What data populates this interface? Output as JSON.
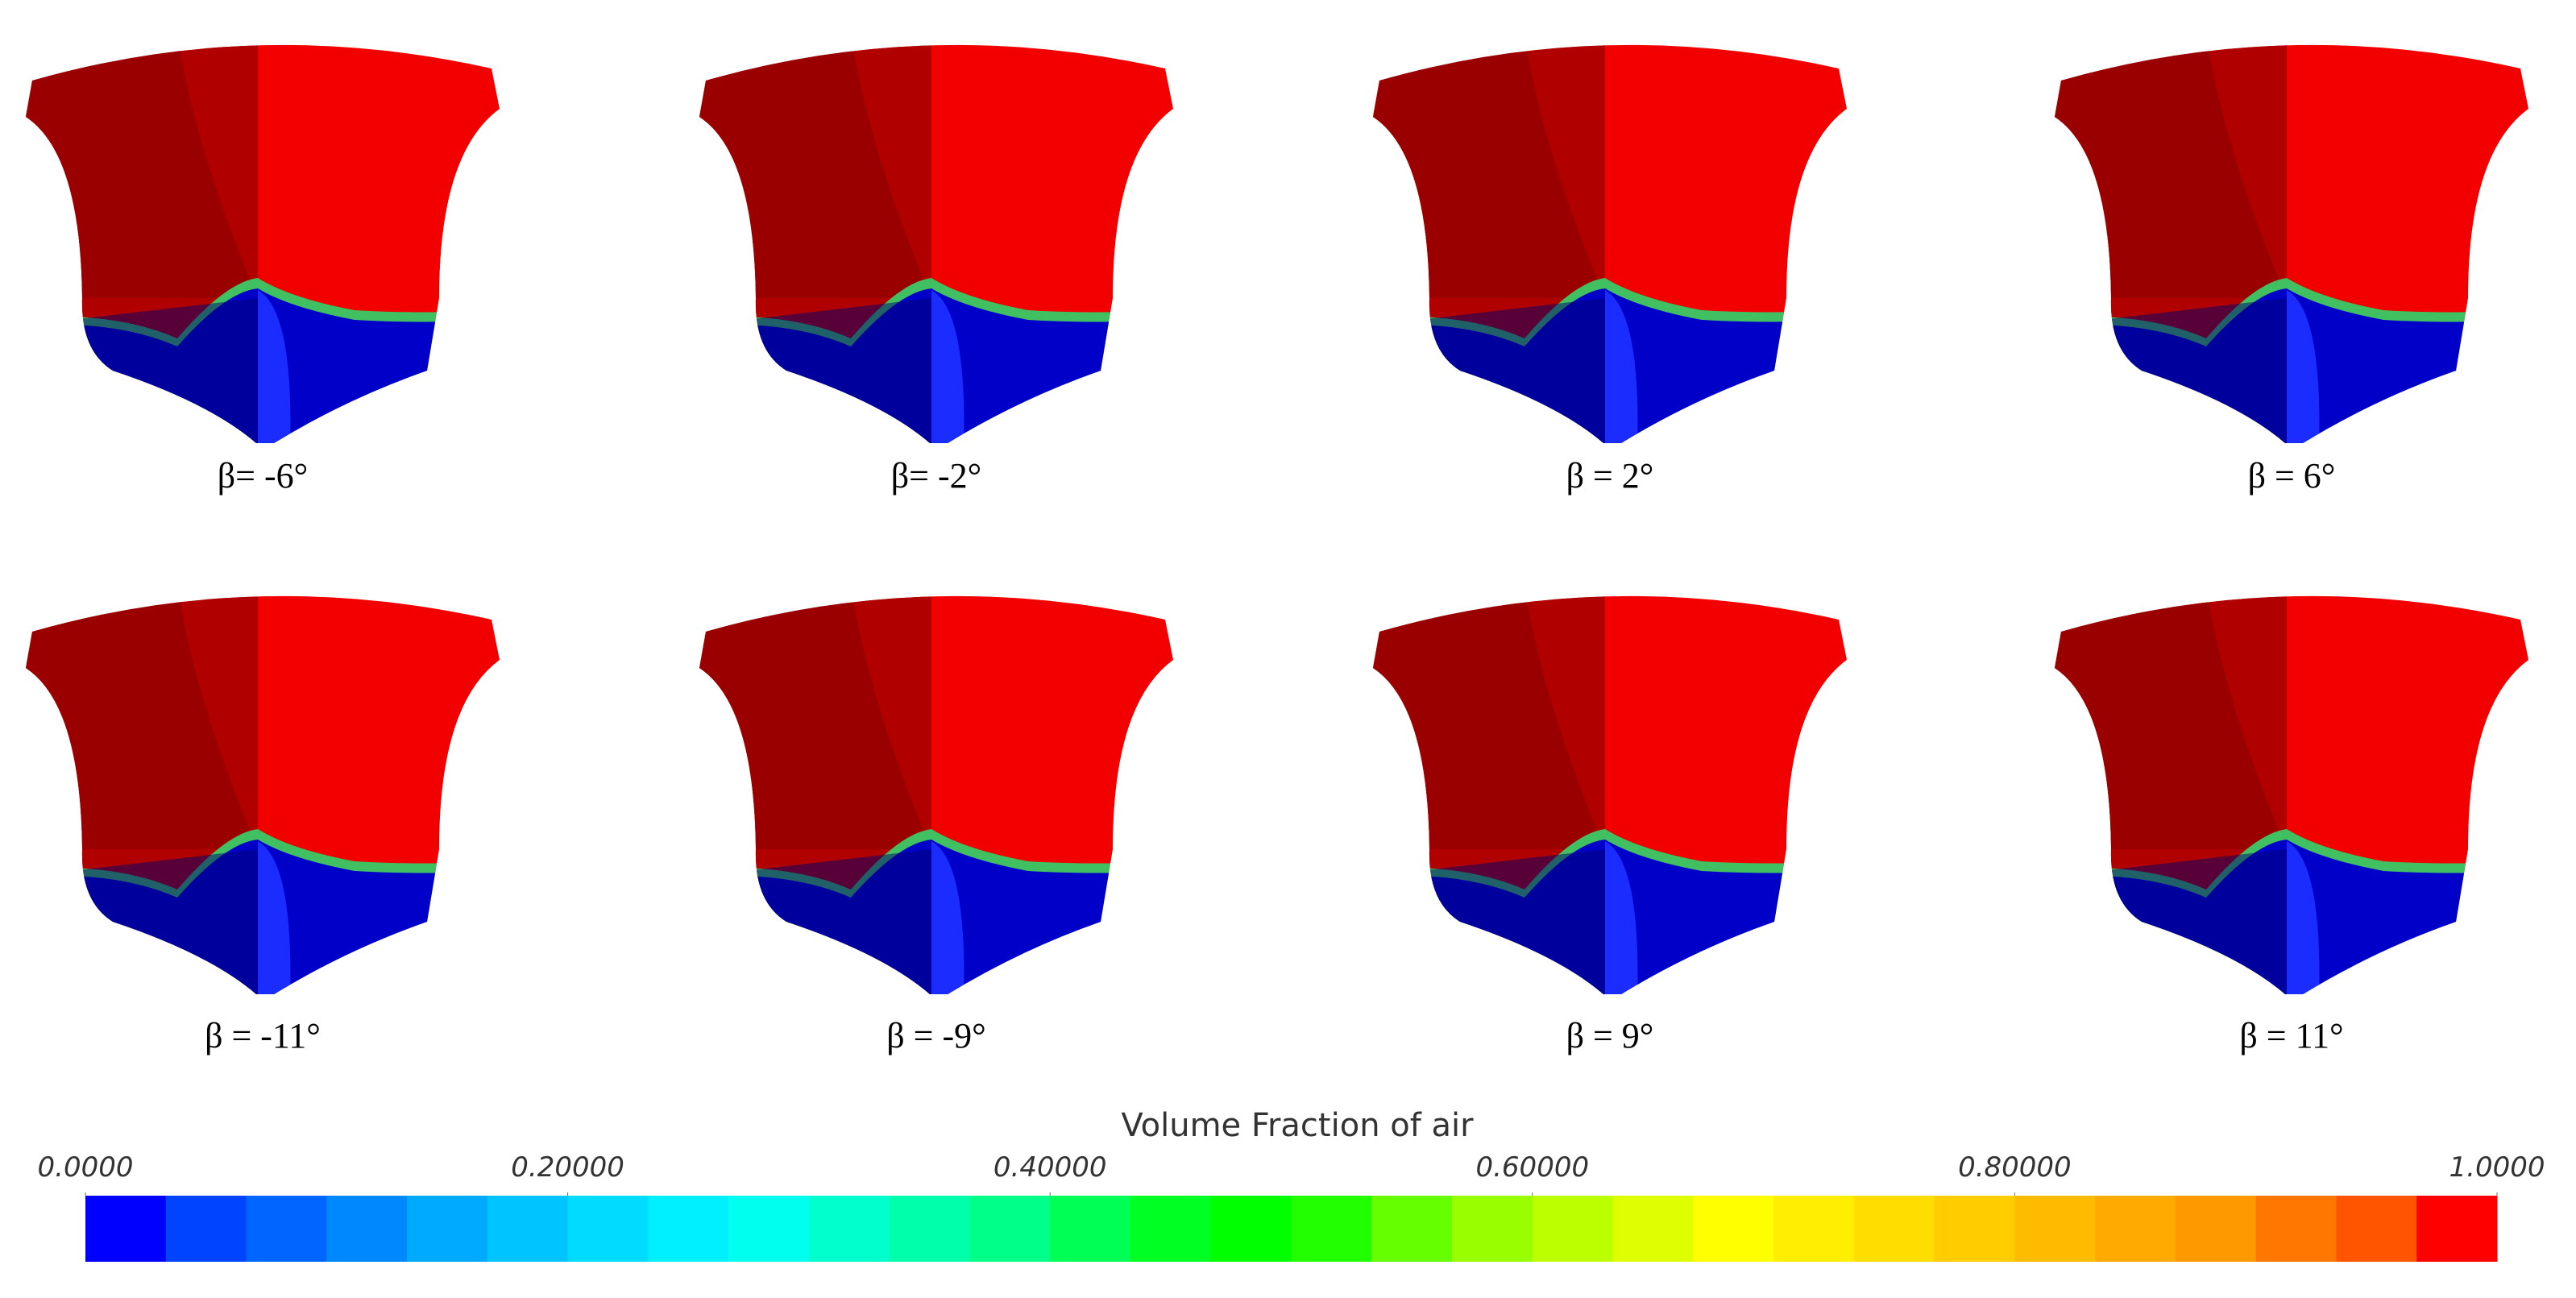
{
  "panels": [
    {
      "label": "β= -6°"
    },
    {
      "label": "β= -2°"
    },
    {
      "label": "β = 2°"
    },
    {
      "label": "β = 6°"
    },
    {
      "label": "β = -11°"
    },
    {
      "label": "β = -9°"
    },
    {
      "label": "β = 9°"
    },
    {
      "label": "β = 11°"
    }
  ],
  "colorbar": {
    "title": "Volume Fraction of air",
    "ticks": [
      {
        "value": 0,
        "label": "0.0000"
      },
      {
        "value": 0.2,
        "label": "0.20000"
      },
      {
        "value": 0.4,
        "label": "0.40000"
      },
      {
        "value": 0.6,
        "label": "0.60000"
      },
      {
        "value": 0.8,
        "label": "0.80000"
      },
      {
        "value": 1,
        "label": "1.0000"
      }
    ],
    "colors": [
      "#0000ff",
      "#0044ff",
      "#0066ff",
      "#0088ff",
      "#00aaff",
      "#00c4ff",
      "#00dcff",
      "#00f0ff",
      "#00ffee",
      "#00ffcc",
      "#00ffaa",
      "#00ff88",
      "#00ff55",
      "#00ff22",
      "#00ff00",
      "#22ff00",
      "#66ff00",
      "#99ff00",
      "#bbff00",
      "#ddff00",
      "#ffff00",
      "#ffee00",
      "#ffdd00",
      "#ffcc00",
      "#ffbb00",
      "#ffaa00",
      "#ff9900",
      "#ff7700",
      "#ff5500",
      "#ff0000"
    ]
  }
}
